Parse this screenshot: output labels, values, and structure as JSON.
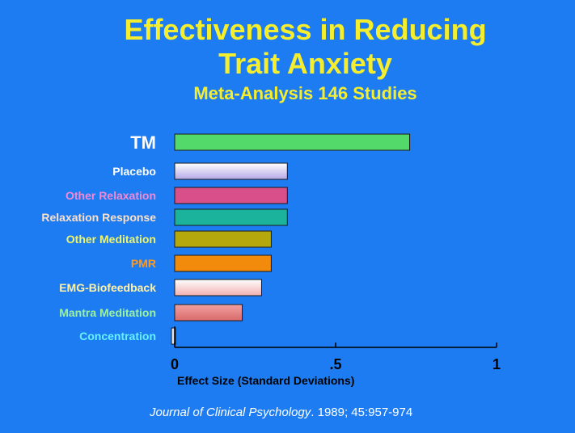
{
  "chart_data": {
    "type": "bar",
    "orientation": "horizontal",
    "title": "Effectiveness in Reducing Trait Anxiety",
    "title_lines": [
      "Effectiveness in Reducing",
      "Trait Anxiety"
    ],
    "subtitle": "Meta-Analysis 146 Studies",
    "categories": [
      "TM",
      "Placebo",
      "Other Relaxation",
      "Relaxation Response",
      "Other Meditation",
      "PMR",
      "EMG-Biofeedback",
      "Mantra Meditation",
      "Concentration"
    ],
    "values": [
      0.73,
      0.35,
      0.35,
      0.35,
      0.3,
      0.3,
      0.27,
      0.21,
      0.01
    ],
    "label_colors": [
      "#ffffff",
      "#ffffff",
      "#f08ad6",
      "#fde0c8",
      "#eef56a",
      "#ff9a1f",
      "#fff2a8",
      "#9cf29c",
      "#66f2ff"
    ],
    "bar_colors": [
      "#53d86a",
      "#ffffff",
      "#d84f8a",
      "#1bb39c",
      "#b4a80d",
      "#f28a0c",
      "#ffffff",
      "#f2a0a0",
      "#d8e4f2"
    ],
    "bar_gradient_to": [
      "#53d86a",
      "#b4a8e6",
      "#d84f8a",
      "#1bb39c",
      "#b4a80d",
      "#f28a0c",
      "#f2b0b0",
      "#d86a6a",
      "#d8e4f2"
    ],
    "xlabel": "Effect Size (Standard Deviations)",
    "ylabel": "",
    "xlim": [
      0,
      1
    ],
    "xticks": [
      0,
      0.5,
      1
    ],
    "xtick_labels": [
      "0",
      ".5",
      "1"
    ]
  },
  "citation": {
    "journal": "Journal of Clinical Psychology",
    "details": ". 1989; 45:957-974"
  },
  "colors": {
    "background": "#1e7cf2",
    "title": "#f4ee2e",
    "axis": "#000000"
  }
}
